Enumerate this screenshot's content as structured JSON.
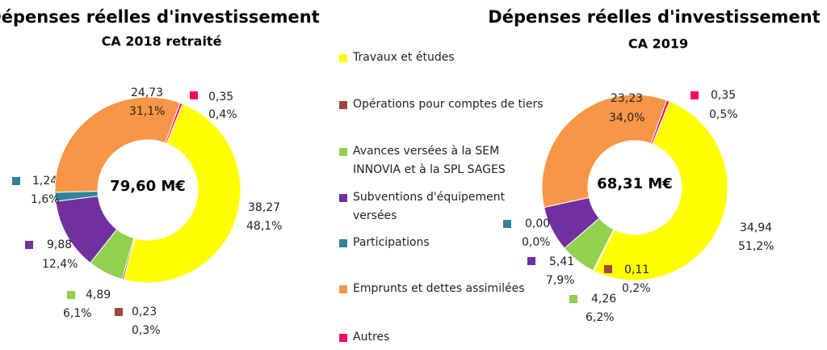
{
  "legend": {
    "categories": [
      "Travaux et études",
      "Opérations pour comptes de tiers",
      "Avances versées à la SEM INNOVIA et à la SPL SAGES",
      "Subventions d'équipement versées",
      "Participations",
      "Emprunts et dettes assimilées",
      "Autres"
    ],
    "colors": [
      "#ffff00",
      "#a0463c",
      "#92d050",
      "#7030a0",
      "#31849b",
      "#f79646",
      "#ff0066"
    ]
  },
  "chart_data": [
    {
      "type": "donut",
      "title": "Dépenses réelles d'investissement",
      "subtitle": "CA 2018 retraité",
      "center_label": "79,60 M€",
      "values": [
        38.27,
        0.23,
        4.89,
        9.88,
        1.24,
        24.73,
        0.35
      ],
      "value_labels": [
        "38,27",
        "0,23",
        "4,89",
        "9,88",
        "1,24",
        "24,73",
        "0,35"
      ],
      "percent_labels": [
        "48,1%",
        "0,3%",
        "6,1%",
        "12,4%",
        "1,6%",
        "31,1%",
        "0,4%"
      ]
    },
    {
      "type": "donut",
      "title": "Dépenses réelles d'investissement",
      "subtitle": "CA 2019",
      "center_label": "68,31 M€",
      "values": [
        34.94,
        0.11,
        4.26,
        5.41,
        0.0,
        23.23,
        0.35
      ],
      "value_labels": [
        "34,94",
        "0,11",
        "4,26",
        "5,41",
        "0,00",
        "23,23",
        "0,35"
      ],
      "percent_labels": [
        "51,2%",
        "0,2%",
        "6,2%",
        "7,9%",
        "0,0%",
        "34,0%",
        "0,5%"
      ]
    }
  ]
}
